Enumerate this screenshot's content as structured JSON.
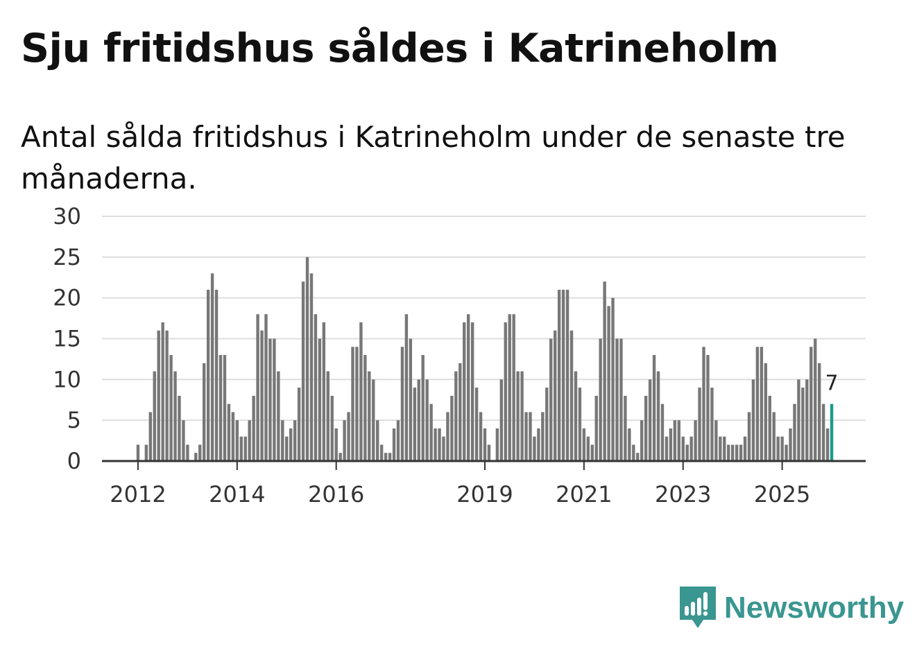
{
  "header": {
    "title": "Sju fritidshus såldes i Katrineholm",
    "subtitle": "Antal sålda fritidshus i Katrineholm under de senaste tre månaderna."
  },
  "brand": {
    "name": "Newsworthy",
    "color": "#3a9690",
    "icon": "newsworthy-logo-icon"
  },
  "colors": {
    "bar": "#777777",
    "highlight": "#1a9a8c",
    "grid": "#dddddd",
    "axis": "#333333"
  },
  "chart_data": {
    "type": "bar",
    "title": "",
    "xlabel": "",
    "ylabel": "",
    "ylim": [
      0,
      30
    ],
    "yticks": [
      0,
      5,
      10,
      15,
      20,
      25,
      30
    ],
    "x_start": "2011-10",
    "xticks": [
      {
        "label": "2012",
        "x": "2012-01"
      },
      {
        "label": "2014",
        "x": "2014-01"
      },
      {
        "label": "2016",
        "x": "2016-01"
      },
      {
        "label": "2019",
        "x": "2019-01"
      },
      {
        "label": "2021",
        "x": "2021-01"
      },
      {
        "label": "2023",
        "x": "2023-01"
      },
      {
        "label": "2025",
        "x": "2025-01"
      }
    ],
    "grid": true,
    "values": [
      0,
      0,
      0,
      2,
      0,
      2,
      6,
      11,
      16,
      17,
      16,
      13,
      11,
      8,
      5,
      2,
      0,
      1,
      2,
      12,
      21,
      23,
      21,
      13,
      13,
      7,
      6,
      5,
      3,
      3,
      5,
      8,
      18,
      16,
      18,
      15,
      15,
      11,
      5,
      3,
      4,
      5,
      9,
      22,
      25,
      23,
      18,
      15,
      17,
      11,
      8,
      4,
      1,
      5,
      6,
      14,
      14,
      17,
      13,
      11,
      10,
      5,
      2,
      1,
      1,
      4,
      5,
      14,
      18,
      15,
      9,
      10,
      13,
      10,
      7,
      4,
      4,
      3,
      6,
      8,
      11,
      12,
      17,
      18,
      17,
      9,
      6,
      4,
      2,
      0,
      4,
      10,
      17,
      18,
      18,
      11,
      11,
      6,
      6,
      3,
      4,
      6,
      9,
      15,
      16,
      21,
      21,
      21,
      16,
      11,
      9,
      4,
      3,
      2,
      8,
      15,
      22,
      19,
      20,
      15,
      15,
      8,
      4,
      2,
      1,
      5,
      8,
      10,
      13,
      11,
      7,
      3,
      4,
      5,
      5,
      3,
      2,
      3,
      5,
      9,
      14,
      13,
      9,
      5,
      3,
      3,
      2,
      2,
      2,
      2,
      3,
      6,
      10,
      14,
      14,
      12,
      8,
      6,
      3,
      3,
      2,
      4,
      7,
      10,
      9,
      10,
      14,
      15,
      12,
      7,
      4,
      7
    ],
    "highlight_last": true,
    "last_value_label": "7"
  }
}
